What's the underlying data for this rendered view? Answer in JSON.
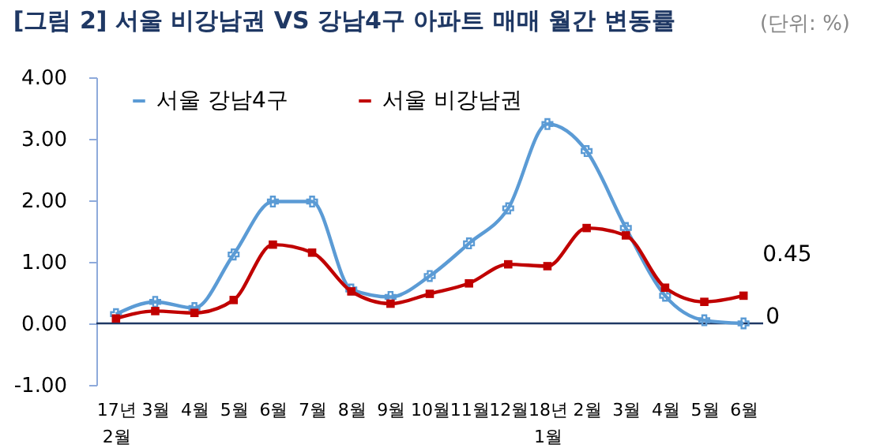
{
  "chart_data": {
    "type": "line",
    "title": "[그림 2] 서울 비강남권 VS 강남4구 아파트 매매 월간 변동률",
    "annotations": [
      "(단위: %)"
    ],
    "categories": [
      "17년 2월",
      "3월",
      "4월",
      "5월",
      "6월",
      "7월",
      "8월",
      "9월",
      "10월",
      "11월",
      "12월",
      "18년 1월",
      "2월",
      "3월",
      "4월",
      "5월",
      "6월"
    ],
    "series": [
      {
        "name": "서울 강남4구",
        "color": "#5b9bd5",
        "marker": "cross",
        "values": [
          0.15,
          0.35,
          0.25,
          1.12,
          1.98,
          1.98,
          0.55,
          0.43,
          0.77,
          1.3,
          1.87,
          3.24,
          2.8,
          1.55,
          0.45,
          0.05,
          0
        ],
        "value_labels": [
          null,
          null,
          null,
          null,
          null,
          null,
          null,
          null,
          null,
          null,
          null,
          null,
          null,
          null,
          null,
          null,
          "0"
        ]
      },
      {
        "name": "서울 비강남권",
        "color": "#c00000",
        "marker": "square",
        "values": [
          0.08,
          0.2,
          0.17,
          0.38,
          1.28,
          1.15,
          0.52,
          0.32,
          0.48,
          0.65,
          0.96,
          0.93,
          1.55,
          1.43,
          0.58,
          0.35,
          0.45
        ],
        "value_labels": [
          null,
          null,
          null,
          null,
          null,
          null,
          null,
          null,
          null,
          null,
          null,
          null,
          null,
          null,
          null,
          null,
          "0.45"
        ]
      }
    ],
    "ylim": [
      -1,
      4
    ],
    "yticks": [
      {
        "value": -1,
        "label": "-1.00"
      },
      {
        "value": 0,
        "label": "0.00"
      },
      {
        "value": 1,
        "label": "1.00"
      },
      {
        "value": 2,
        "label": "2.00"
      },
      {
        "value": 3,
        "label": "3.00"
      },
      {
        "value": 4,
        "label": "4.00"
      }
    ],
    "ref_lines": [
      {
        "axis": "y",
        "value": 0,
        "color": "#1f3864"
      }
    ],
    "grid": false,
    "legend": "top left",
    "line_style": "solid"
  }
}
